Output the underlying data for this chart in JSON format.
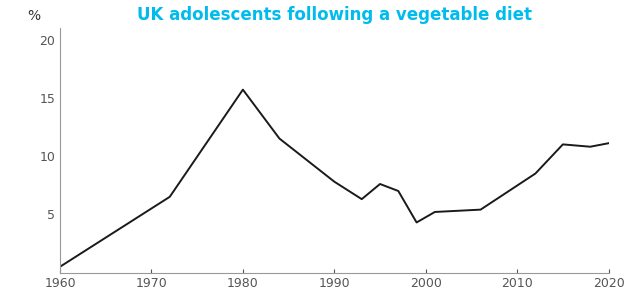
{
  "title": "UK adolescents following a vegetable diet",
  "title_color": "#00BBEE",
  "ylabel": "%",
  "x_values": [
    1960,
    1966,
    1972,
    1980,
    1984,
    1990,
    1993,
    1995,
    1997,
    1999,
    2001,
    2006,
    2012,
    2015,
    2018,
    2020
  ],
  "y_values": [
    0.5,
    3.5,
    6.5,
    15.7,
    11.5,
    7.8,
    6.3,
    7.6,
    7.0,
    4.3,
    5.2,
    5.4,
    8.5,
    11.0,
    10.8,
    11.1
  ],
  "xlim": [
    1960,
    2020
  ],
  "ylim": [
    0,
    21
  ],
  "xticks": [
    1960,
    1970,
    1980,
    1990,
    2000,
    2010,
    2020
  ],
  "yticks": [
    5,
    10,
    15,
    20
  ],
  "line_color": "#1a1a1a",
  "line_width": 1.4,
  "bg_color": "#ffffff",
  "title_fontsize": 12,
  "axis_fontsize": 9,
  "spine_color": "#999999"
}
